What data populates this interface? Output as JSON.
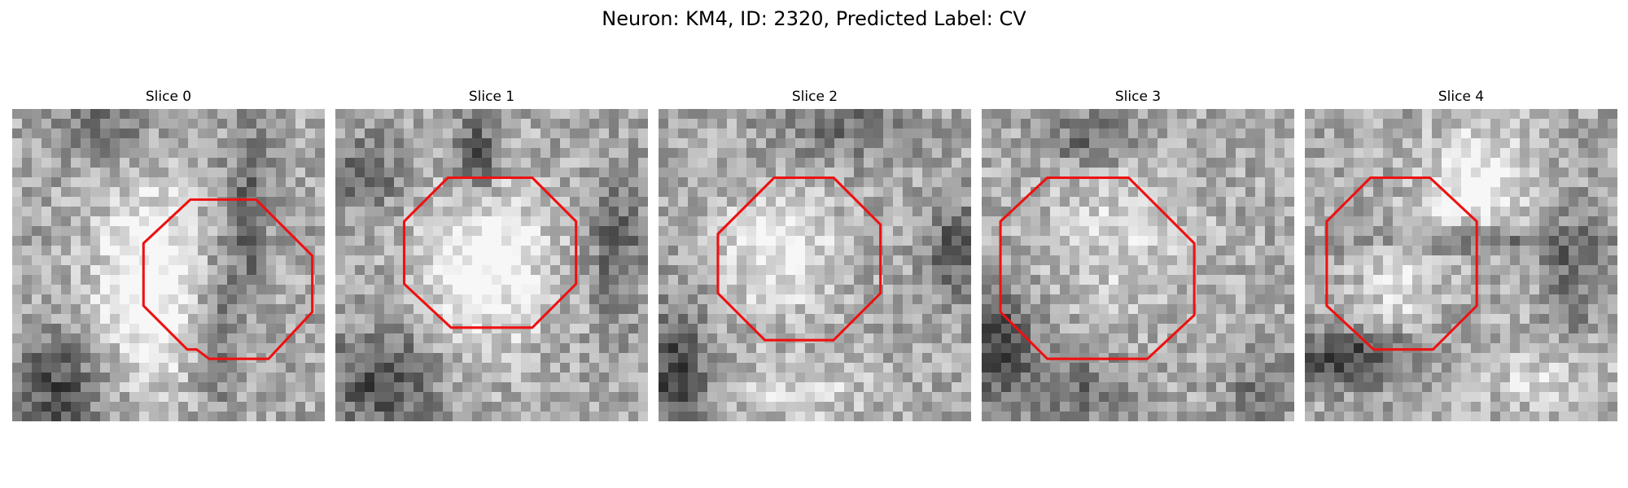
{
  "figure": {
    "title": "Neuron: KM4, ID: 2320, Predicted Label: CV"
  },
  "panels": [
    {
      "title": "Slice 0",
      "seed": 11,
      "blobs": [
        [
          0.45,
          0.55,
          0.13,
          0.22,
          0.9,
          -0.6
        ],
        [
          0.15,
          0.9,
          0.1,
          0.12,
          -0.8,
          0
        ],
        [
          0.3,
          0.05,
          0.1,
          0.1,
          -0.5,
          0
        ],
        [
          0.75,
          0.35,
          0.05,
          0.2,
          -0.6,
          0.3
        ],
        [
          0.65,
          0.7,
          0.05,
          0.2,
          -0.5,
          -0.3
        ]
      ],
      "contour": [
        [
          0.57,
          0.29
        ],
        [
          0.78,
          0.29
        ],
        [
          0.96,
          0.47
        ],
        [
          0.96,
          0.65
        ],
        [
          0.82,
          0.8
        ],
        [
          0.63,
          0.8
        ],
        [
          0.59,
          0.77
        ],
        [
          0.56,
          0.77
        ],
        [
          0.42,
          0.63
        ],
        [
          0.42,
          0.43
        ]
      ]
    },
    {
      "title": "Slice 1",
      "seed": 23,
      "blobs": [
        [
          0.48,
          0.5,
          0.14,
          0.18,
          0.9,
          0
        ],
        [
          0.15,
          0.88,
          0.12,
          0.12,
          -0.8,
          0
        ],
        [
          0.45,
          0.15,
          0.05,
          0.1,
          -0.8,
          0
        ],
        [
          0.1,
          0.2,
          0.08,
          0.08,
          -0.6,
          0
        ],
        [
          0.9,
          0.45,
          0.06,
          0.15,
          -0.6,
          0
        ]
      ],
      "contour": [
        [
          0.36,
          0.22
        ],
        [
          0.63,
          0.22
        ],
        [
          0.77,
          0.36
        ],
        [
          0.77,
          0.56
        ],
        [
          0.63,
          0.7
        ],
        [
          0.37,
          0.7
        ],
        [
          0.22,
          0.56
        ],
        [
          0.22,
          0.36
        ]
      ]
    },
    {
      "title": "Slice 2",
      "seed": 37,
      "blobs": [
        [
          0.38,
          0.45,
          0.13,
          0.13,
          0.7,
          0
        ],
        [
          0.05,
          0.85,
          0.08,
          0.15,
          -0.9,
          0
        ],
        [
          0.6,
          0.05,
          0.15,
          0.08,
          -0.5,
          0
        ],
        [
          0.95,
          0.45,
          0.06,
          0.1,
          -0.7,
          0
        ],
        [
          0.45,
          0.9,
          0.15,
          0.08,
          0.4,
          0
        ]
      ],
      "contour": [
        [
          0.37,
          0.22
        ],
        [
          0.56,
          0.22
        ],
        [
          0.71,
          0.37
        ],
        [
          0.71,
          0.59
        ],
        [
          0.56,
          0.74
        ],
        [
          0.34,
          0.74
        ],
        [
          0.19,
          0.59
        ],
        [
          0.19,
          0.4
        ]
      ]
    },
    {
      "title": "Slice 3",
      "seed": 53,
      "blobs": [
        [
          0.45,
          0.4,
          0.18,
          0.18,
          0.4,
          0
        ],
        [
          0.05,
          0.75,
          0.08,
          0.12,
          -0.9,
          0
        ],
        [
          0.3,
          0.9,
          0.12,
          0.08,
          -0.5,
          0
        ],
        [
          0.35,
          0.1,
          0.1,
          0.06,
          -0.6,
          0
        ],
        [
          0.9,
          0.9,
          0.08,
          0.08,
          -0.5,
          0
        ]
      ],
      "contour": [
        [
          0.21,
          0.22
        ],
        [
          0.47,
          0.22
        ],
        [
          0.68,
          0.43
        ],
        [
          0.68,
          0.66
        ],
        [
          0.53,
          0.8
        ],
        [
          0.21,
          0.8
        ],
        [
          0.06,
          0.65
        ],
        [
          0.06,
          0.36
        ]
      ]
    },
    {
      "title": "Slice 4",
      "seed": 71,
      "blobs": [
        [
          0.55,
          0.25,
          0.12,
          0.13,
          0.8,
          0
        ],
        [
          0.15,
          0.8,
          0.14,
          0.06,
          -0.9,
          -0.8
        ],
        [
          0.55,
          0.42,
          0.25,
          0.04,
          -0.6,
          0.2
        ],
        [
          0.3,
          0.55,
          0.1,
          0.1,
          0.5,
          0
        ],
        [
          0.85,
          0.55,
          0.06,
          0.15,
          -0.5,
          0
        ],
        [
          0.75,
          0.85,
          0.15,
          0.08,
          0.4,
          0
        ]
      ],
      "contour": [
        [
          0.21,
          0.22
        ],
        [
          0.4,
          0.22
        ],
        [
          0.55,
          0.36
        ],
        [
          0.55,
          0.63
        ],
        [
          0.41,
          0.77
        ],
        [
          0.22,
          0.77
        ],
        [
          0.07,
          0.63
        ],
        [
          0.07,
          0.36
        ]
      ]
    }
  ]
}
